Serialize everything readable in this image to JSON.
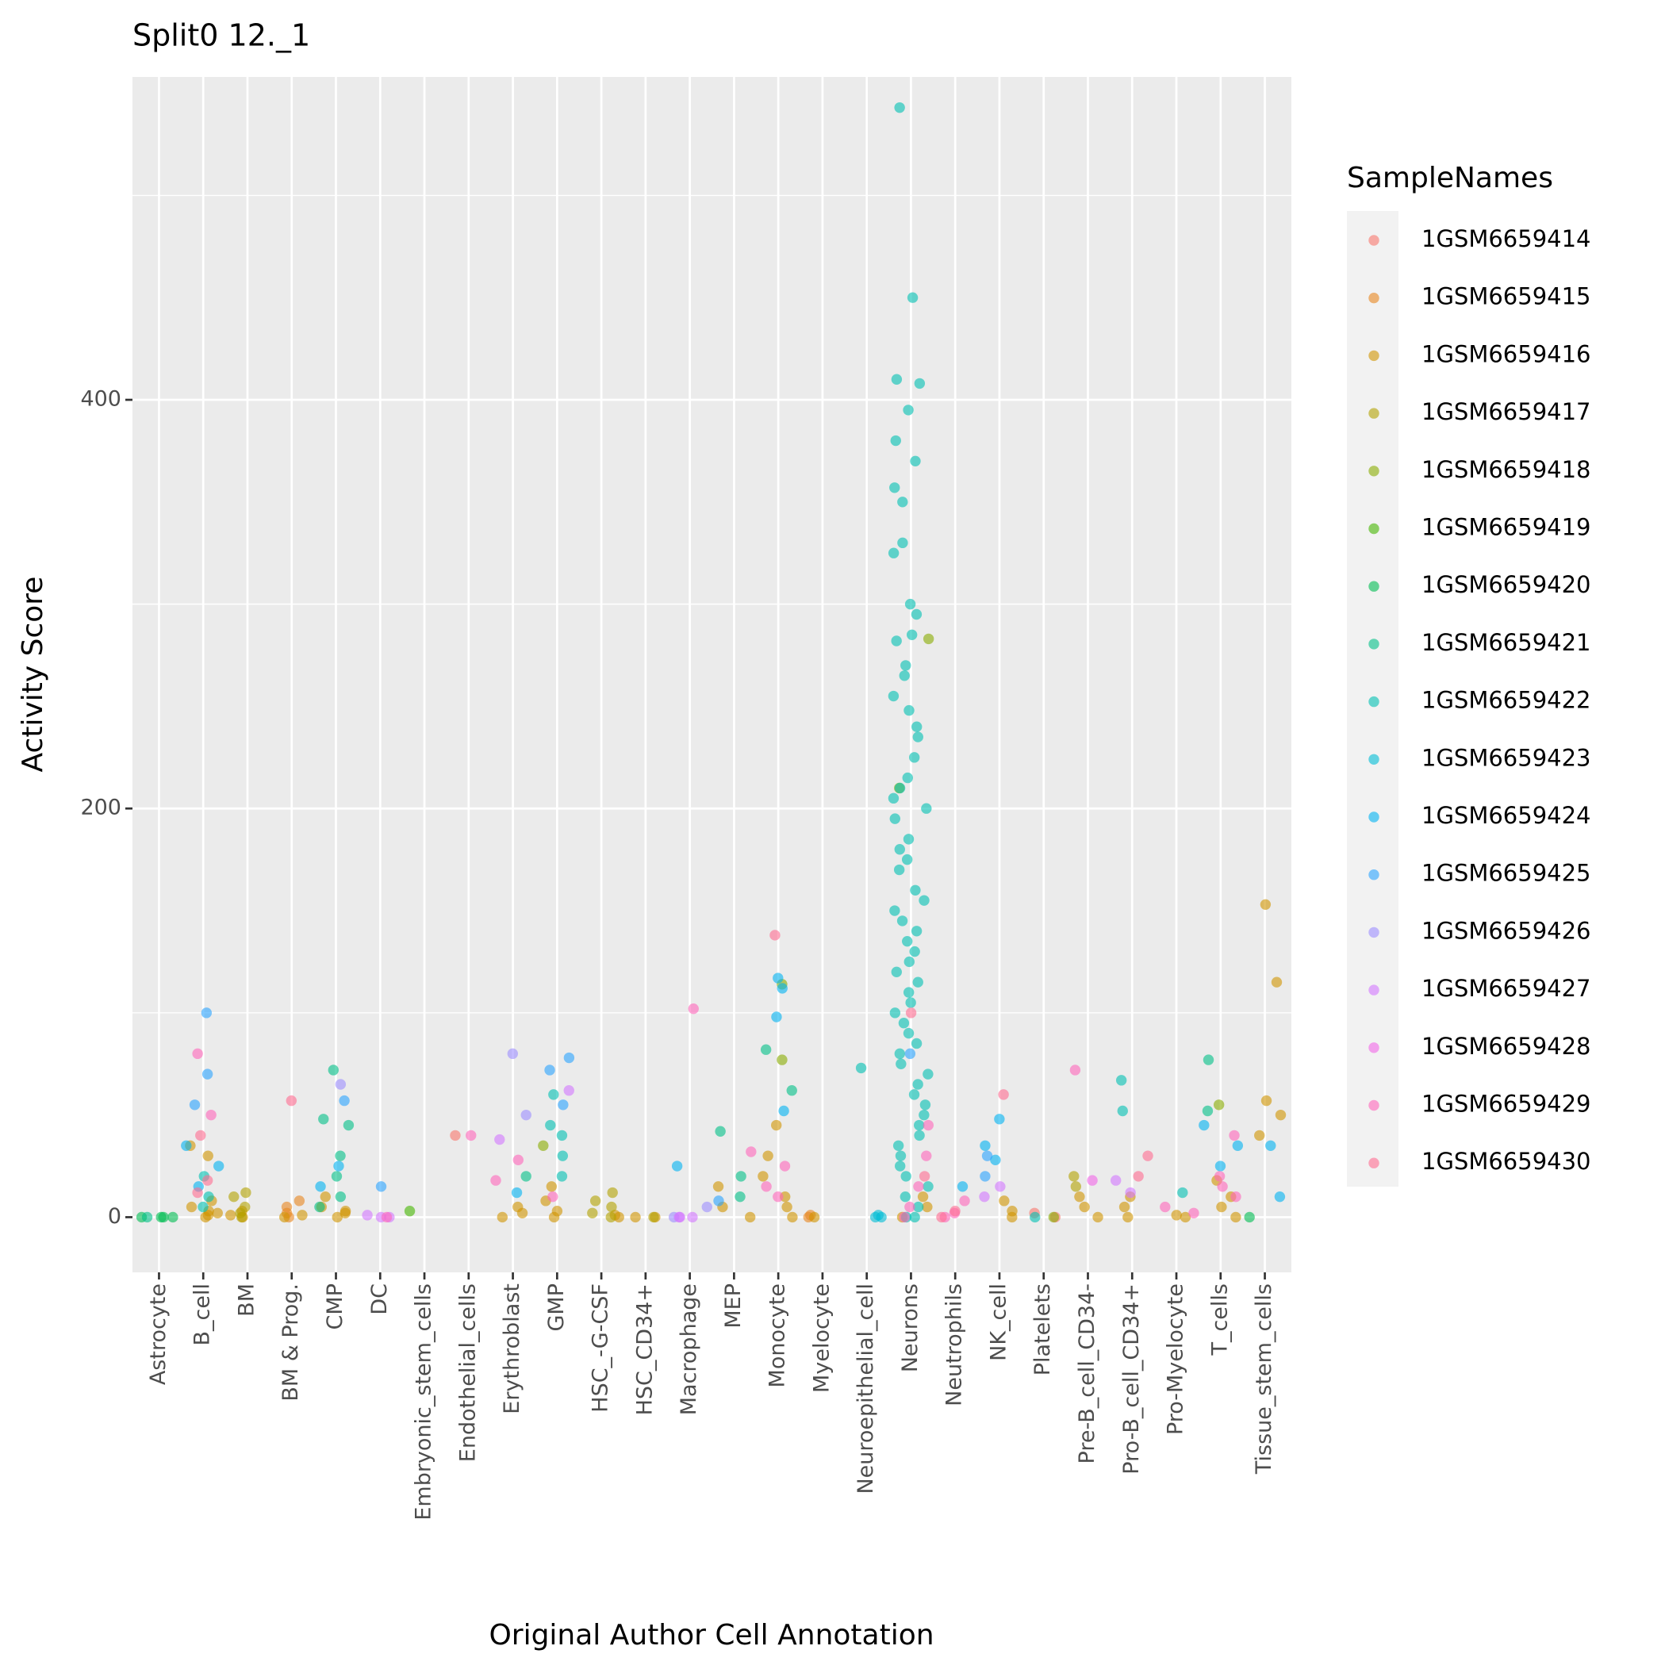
{
  "chart_data": {
    "type": "strip",
    "title": "Split0 12._1",
    "x_label": "Original Author Cell Annotation",
    "y_label": "Activity Score",
    "legend_title": "SampleNames",
    "legend": "right",
    "grid": true,
    "ylim": [
      -27,
      558
    ],
    "yticks": [
      0,
      200,
      400
    ],
    "minor_yticks": [
      100,
      300,
      500
    ],
    "categories": [
      "Astrocyte",
      "B_cell",
      "BM",
      "BM & Prog.",
      "CMP",
      "DC",
      "Embryonic_stem_cells",
      "Endothelial_cells",
      "Erythroblast",
      "GMP",
      "HSC_-G-CSF",
      "HSC_CD34+",
      "Macrophage",
      "MEP",
      "Monocyte",
      "Myelocyte",
      "Neuroepithelial_cell",
      "Neurons",
      "Neutrophils",
      "NK_cell",
      "Platelets",
      "Pre-B_cell_CD34-",
      "Pro-B_cell_CD34+",
      "Pro-Myelocyte",
      "T_cells",
      "Tissue_stem_cells"
    ],
    "series": [
      {
        "name": "1GSM6659414",
        "color": "#F8766D",
        "values": [
          [],
          [],
          [],
          [],
          [],
          [],
          [],
          [
            40
          ],
          [],
          [],
          [],
          [],
          [],
          [],
          [],
          [],
          [],
          [],
          [],
          [],
          [
            2,
            0
          ],
          [],
          [],
          [],
          [],
          []
        ]
      },
      {
        "name": "1GSM6659415",
        "color": "#E7851E",
        "values": [
          [],
          [],
          [],
          [
            0,
            2,
            5,
            8
          ],
          [],
          [],
          [],
          [],
          [],
          [],
          [],
          [],
          [],
          [],
          [],
          [
            0,
            1
          ],
          [],
          [],
          [],
          [],
          [],
          [],
          [],
          [],
          [],
          []
        ]
      },
      {
        "name": "1GSM6659416",
        "color": "#D09400",
        "values": [
          [],
          [
            0,
            1,
            2,
            3,
            5,
            8,
            30,
            35
          ],
          [
            0,
            1,
            3
          ],
          [
            0,
            1
          ],
          [
            0,
            2,
            5,
            10,
            3
          ],
          [],
          [],
          [],
          [
            0,
            2,
            5
          ],
          [
            0,
            3,
            8,
            15
          ],
          [
            0,
            1
          ],
          [
            0,
            0
          ],
          [],
          [
            0,
            5,
            15
          ],
          [
            0,
            5,
            10,
            20,
            30,
            45
          ],
          [
            0
          ],
          [],
          [
            10,
            5,
            0
          ],
          [],
          [
            0,
            3,
            8
          ],
          [],
          [
            0,
            5,
            10
          ],
          [
            0,
            5,
            10
          ],
          [
            0,
            1
          ],
          [
            0,
            5,
            10,
            18
          ],
          [
            153,
            115,
            57,
            50,
            40
          ]
        ]
      },
      {
        "name": "1GSM6659417",
        "color": "#B2A100",
        "values": [
          [],
          [],
          [
            0,
            2,
            5,
            12,
            10
          ],
          [],
          [],
          [],
          [],
          [],
          [],
          [],
          [
            12,
            8,
            5,
            2,
            0
          ],
          [
            0
          ],
          [],
          [],
          [],
          [],
          [],
          [],
          [],
          [],
          [],
          [
            20,
            15
          ],
          [],
          [],
          [],
          []
        ]
      },
      {
        "name": "1GSM6659418",
        "color": "#89AC00",
        "values": [
          [],
          [],
          [],
          [],
          [],
          [],
          [],
          [],
          [],
          [
            35
          ],
          [],
          [],
          [],
          [],
          [
            114,
            77
          ],
          [],
          [],
          [
            283,
            210
          ],
          [],
          [],
          [
            0
          ],
          [],
          [],
          [],
          [
            55
          ],
          []
        ]
      },
      {
        "name": "1GSM6659419",
        "color": "#45B500",
        "values": [
          [],
          [],
          [],
          [],
          [],
          [],
          [
            3
          ],
          [],
          [],
          [],
          [],
          [],
          [],
          [],
          [],
          [],
          [],
          [],
          [],
          [],
          [],
          [],
          [],
          [],
          [],
          []
        ]
      },
      {
        "name": "1GSM6659420",
        "color": "#00BC51",
        "values": [
          [
            0,
            0,
            0,
            0
          ],
          [],
          [],
          [],
          [],
          [],
          [],
          [],
          [],
          [],
          [],
          [],
          [],
          [],
          [],
          [],
          [],
          [],
          [],
          [],
          [],
          [],
          [],
          [],
          [],
          [
            0
          ]
        ]
      },
      {
        "name": "1GSM6659421",
        "color": "#00C087",
        "values": [
          [
            0
          ],
          [],
          [],
          [],
          [
            72,
            48,
            45,
            30,
            20,
            10,
            5
          ],
          [],
          [],
          [],
          [
            20
          ],
          [],
          [],
          [],
          [],
          [
            42,
            20,
            10
          ],
          [
            82,
            62
          ],
          [],
          [],
          [],
          [],
          [],
          [],
          [],
          [],
          [],
          [
            77,
            52
          ],
          []
        ]
      },
      {
        "name": "1GSM6659422",
        "color": "#00C0B2",
        "values": [
          [],
          [
            20,
            10,
            5
          ],
          [],
          [],
          [],
          [],
          [],
          [],
          [],
          [
            60,
            45,
            40,
            30,
            20
          ],
          [],
          [],
          [],
          [],
          [],
          [],
          [
            73
          ],
          [
            543,
            450,
            410,
            408,
            395,
            380,
            370,
            357,
            350,
            330,
            325,
            300,
            295,
            285,
            282,
            270,
            265,
            255,
            248,
            240,
            235,
            225,
            215,
            210,
            205,
            200,
            195,
            185,
            180,
            175,
            170,
            160,
            155,
            150,
            145,
            140,
            135,
            130,
            125,
            120,
            115,
            110,
            105,
            100,
            95,
            90,
            85,
            80,
            75,
            70,
            65,
            60,
            55,
            50,
            45,
            40,
            35,
            30,
            25,
            20,
            15,
            10,
            5,
            0,
            0
          ],
          [],
          [],
          [
            0
          ],
          [],
          [
            67,
            52
          ],
          [
            12
          ],
          [],
          []
        ]
      },
      {
        "name": "1GSM6659423",
        "color": "#00BCD6",
        "values": [
          [],
          [],
          [],
          [],
          [],
          [],
          [],
          [],
          [],
          [],
          [],
          [],
          [],
          [],
          [],
          [],
          [
            0,
            0,
            1
          ],
          [],
          [],
          [],
          [],
          [],
          [],
          [],
          [],
          []
        ]
      },
      {
        "name": "1GSM6659424",
        "color": "#00B3F2",
        "values": [
          [],
          [
            35,
            25,
            15
          ],
          [],
          [],
          [
            25,
            15
          ],
          [],
          [],
          [],
          [
            12
          ],
          [],
          [],
          [],
          [
            25
          ],
          [],
          [
            117,
            112,
            98,
            52
          ],
          [],
          [],
          [],
          [
            15
          ],
          [
            48,
            35,
            28
          ],
          [],
          [],
          [],
          [],
          [
            45,
            35,
            25
          ],
          [
            35,
            10
          ]
        ]
      },
      {
        "name": "1GSM6659425",
        "color": "#29A3FF",
        "values": [
          [],
          [
            100,
            55,
            70
          ],
          [],
          [],
          [
            57
          ],
          [
            15
          ],
          [],
          [],
          [],
          [
            72,
            78,
            55
          ],
          [],
          [],
          [],
          [
            8
          ],
          [],
          [],
          [],
          [
            80
          ],
          [],
          [
            30,
            20
          ],
          [],
          [],
          [],
          [],
          [],
          []
        ]
      },
      {
        "name": "1GSM6659426",
        "color": "#9C8DFF",
        "values": [
          [],
          [],
          [],
          [],
          [
            65
          ],
          [],
          [],
          [],
          [
            80,
            50
          ],
          [],
          [],
          [],
          [
            0,
            5
          ],
          [],
          [],
          [],
          [],
          [],
          [],
          [],
          [],
          [],
          [],
          [],
          [],
          []
        ]
      },
      {
        "name": "1GSM6659427",
        "color": "#D277FF",
        "values": [
          [],
          [],
          [],
          [],
          [],
          [
            0,
            1,
            0
          ],
          [],
          [],
          [
            38
          ],
          [
            62
          ],
          [],
          [],
          [
            0,
            0,
            0
          ],
          [],
          [],
          [],
          [],
          [],
          [],
          [
            15,
            10
          ],
          [],
          [],
          [
            18,
            12
          ],
          [],
          [],
          []
        ]
      },
      {
        "name": "1GSM6659428",
        "color": "#F166E8",
        "values": [
          [],
          [],
          [],
          [],
          [],
          [],
          [],
          [],
          [],
          [],
          [],
          [],
          [],
          [],
          [],
          [],
          [],
          [],
          [],
          [],
          [],
          [
            18
          ],
          [],
          [],
          [],
          []
        ]
      },
      {
        "name": "1GSM6659429",
        "color": "#FF65BA",
        "values": [
          [],
          [
            80,
            50
          ],
          [],
          [],
          [],
          [
            0
          ],
          [],
          [
            40
          ],
          [
            28,
            18
          ],
          [
            10
          ],
          [],
          [],
          [
            102
          ],
          [
            32
          ],
          [
            25,
            15,
            10
          ],
          [],
          [],
          [
            45,
            30,
            15,
            5,
            0
          ],
          [
            8,
            2,
            0
          ],
          [],
          [],
          [
            72
          ],
          [],
          [
            5,
            2
          ],
          [
            40,
            20,
            15,
            10
          ],
          []
        ]
      },
      {
        "name": "1GSM6659430",
        "color": "#FF6C91",
        "values": [
          [],
          [
            40,
            18,
            12
          ],
          [],
          [
            57
          ],
          [],
          [],
          [],
          [],
          [],
          [],
          [],
          [],
          [],
          [],
          [
            138
          ],
          [],
          [],
          [
            100,
            20
          ],
          [
            0,
            3
          ],
          [
            60
          ],
          [],
          [],
          [
            30,
            20
          ],
          [],
          [],
          []
        ]
      }
    ]
  }
}
